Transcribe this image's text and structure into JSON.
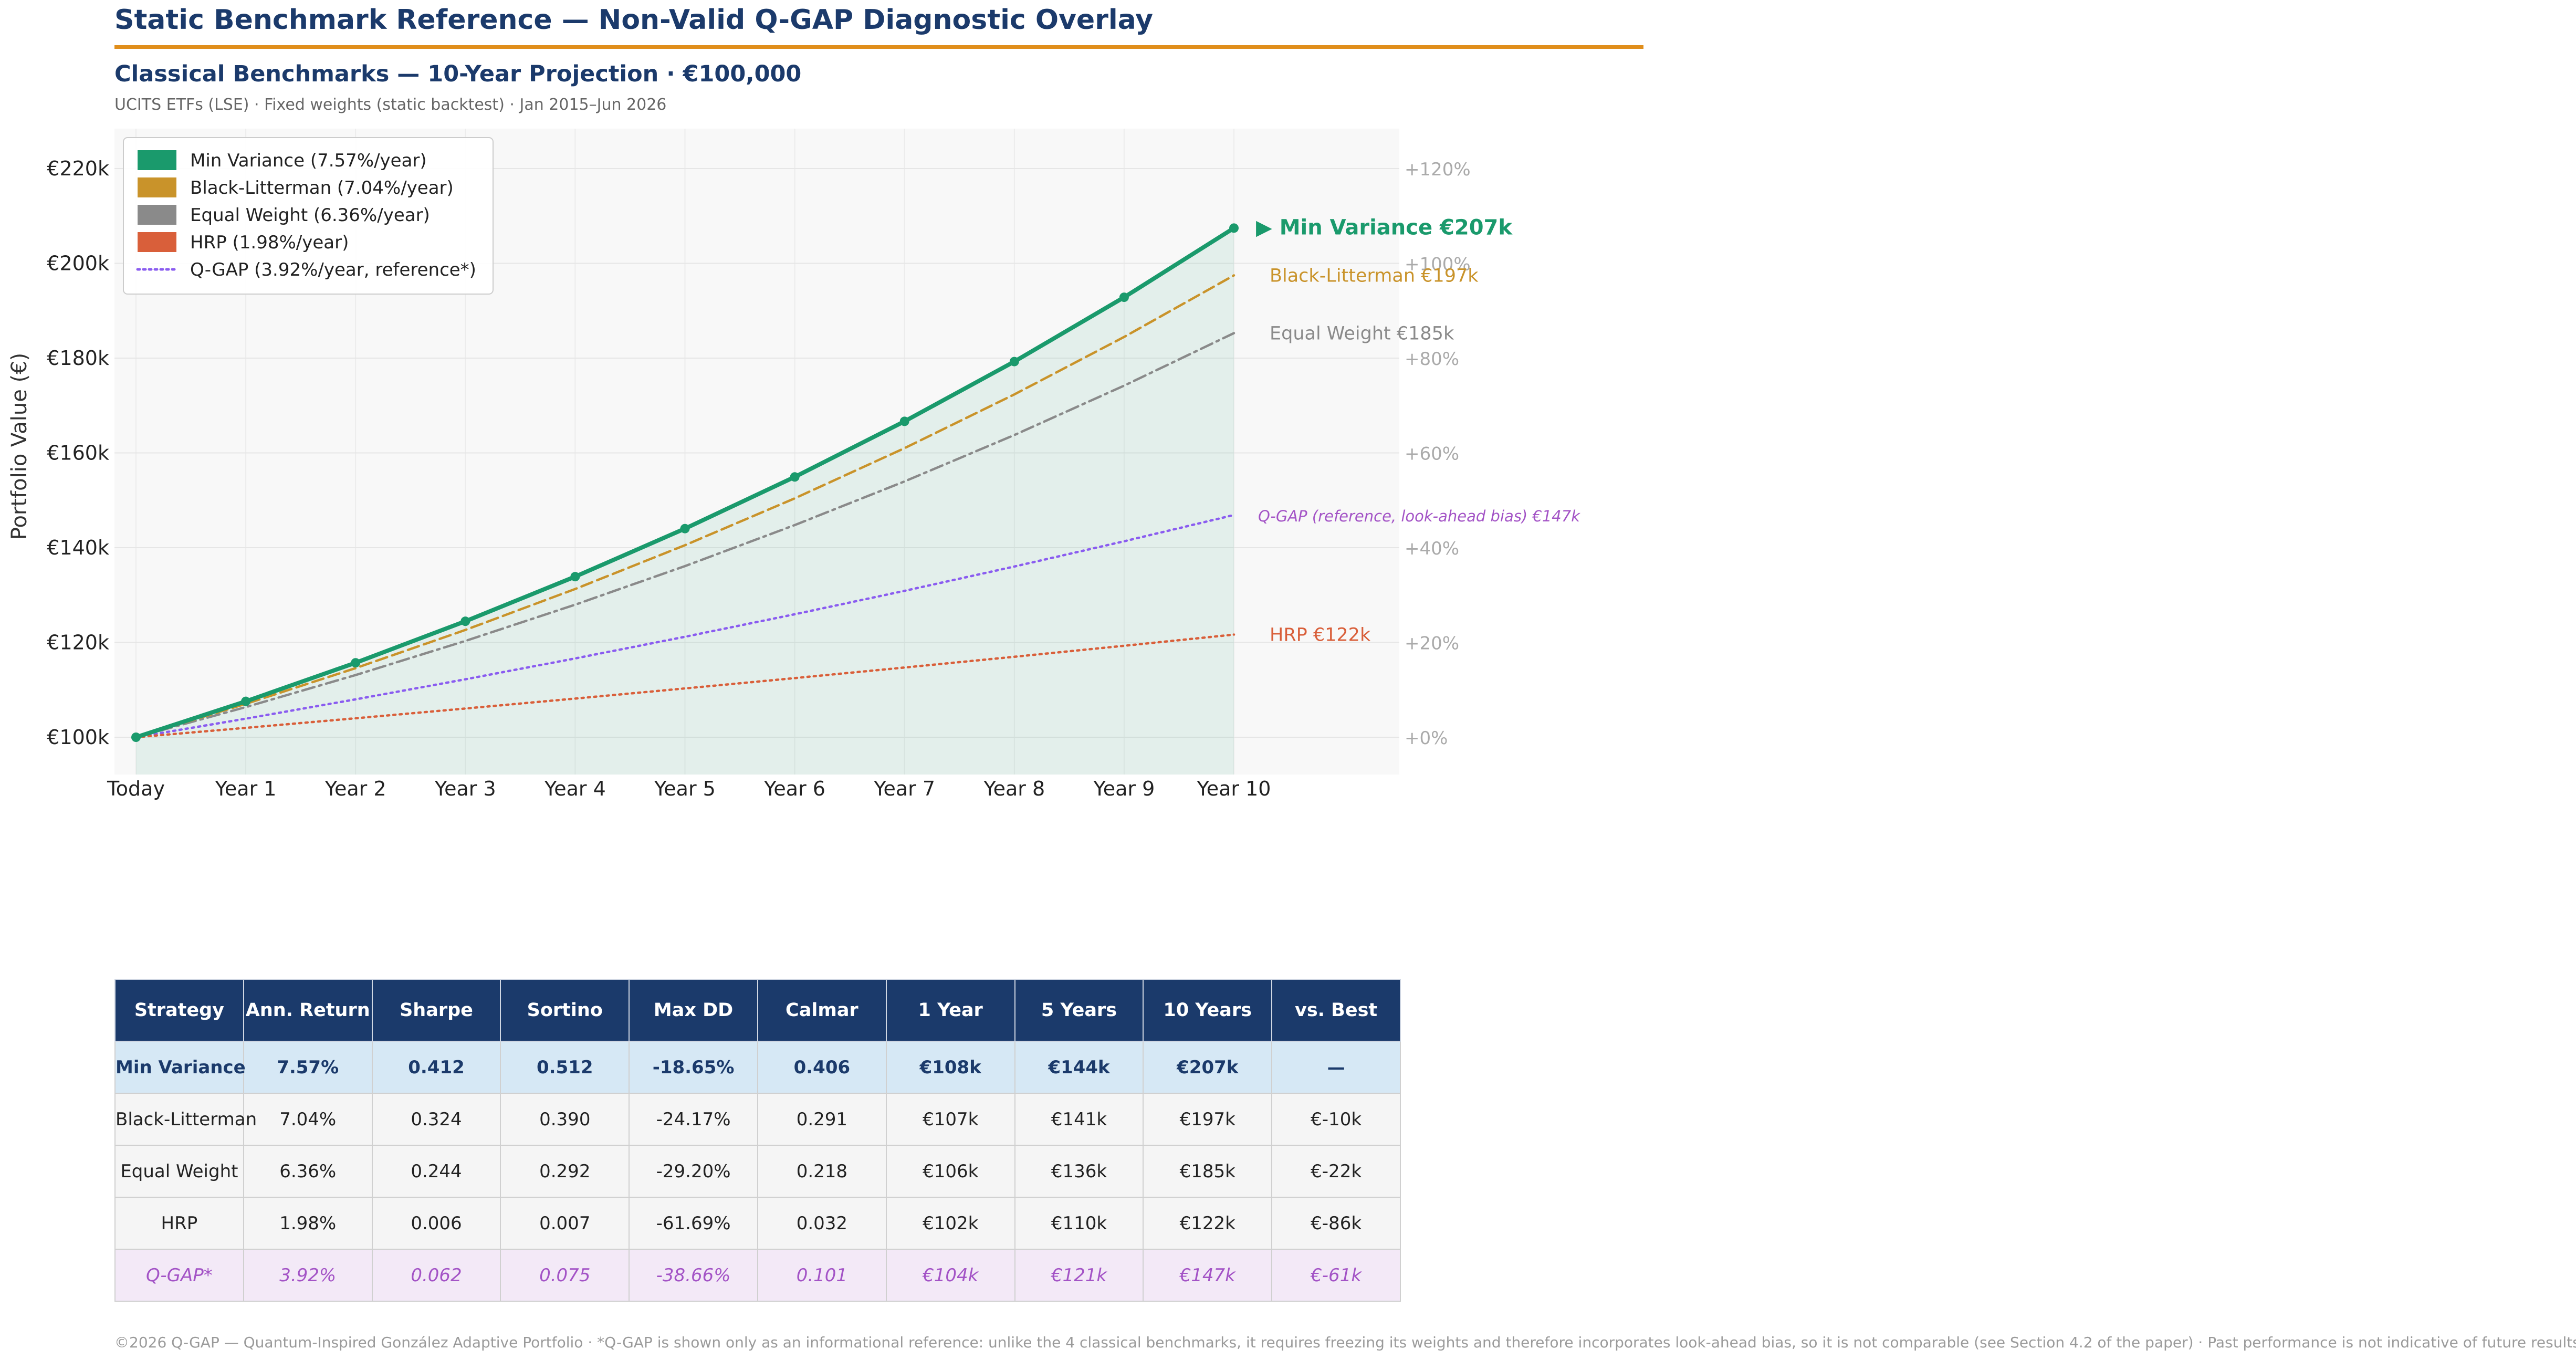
{
  "header": {
    "title": "Static Benchmark Reference — Non-Valid Q-GAP Diagnostic Overlay",
    "subtitle": "Classical Benchmarks — 10-Year Projection  ·  €100,000",
    "meta": "UCITS ETFs (LSE)  ·  Fixed weights (static backtest)  ·  Jan 2015–Jun 2026"
  },
  "colors": {
    "navy": "#1b3a6b",
    "accent_rule": "#e08e1b",
    "min_variance": "#1a9a6c",
    "black_litterman": "#c9932a",
    "equal_weight": "#8a8a8a",
    "hrp": "#d95f3a",
    "qgap": "#8a5cf0",
    "qgap_label": "#a353c6"
  },
  "chart_data": {
    "type": "line",
    "x": [
      "Today",
      "Year 1",
      "Year 2",
      "Year 3",
      "Year 4",
      "Year 5",
      "Year 6",
      "Year 7",
      "Year 8",
      "Year 9",
      "Year 10"
    ],
    "ylabel": "Portfolio Value (€)",
    "ylim": [
      92500,
      228000
    ],
    "y_ticks": [
      100000,
      120000,
      140000,
      160000,
      180000,
      200000,
      220000
    ],
    "y_tick_labels": [
      "€100k",
      "€120k",
      "€140k",
      "€160k",
      "€180k",
      "€200k",
      "€220k"
    ],
    "y2_ticks": [
      0,
      20,
      40,
      60,
      80,
      100,
      120
    ],
    "y2_tick_labels": [
      "+0%",
      "+20%",
      "+40%",
      "+60%",
      "+80%",
      "+100%",
      "+120%"
    ],
    "grid": true,
    "legend_position": "top-left",
    "series": [
      {
        "name": "Min Variance",
        "legend": "Min Variance  (7.57%/year)",
        "rate": 0.0757,
        "color": "#1a9a6c",
        "style": "solid",
        "end_label": "▶ Min Variance  €207k",
        "values": [
          100000,
          107570,
          115710,
          124470,
          133890,
          144020,
          154930,
          166660,
          179270,
          192840,
          207440
        ]
      },
      {
        "name": "Black-Litterman",
        "legend": "Black-Litterman  (7.04%/year)",
        "rate": 0.0704,
        "color": "#c9932a",
        "style": "dashed",
        "end_label": "Black-Litterman  €197k",
        "values": [
          100000,
          107040,
          114580,
          122640,
          131280,
          140520,
          150410,
          161000,
          172340,
          184470,
          197460
        ]
      },
      {
        "name": "Equal Weight",
        "legend": "Equal Weight  (6.36%/year)",
        "rate": 0.0636,
        "color": "#8a8a8a",
        "style": "dashdot",
        "end_label": "Equal Weight  €185k",
        "values": [
          100000,
          106360,
          113120,
          120320,
          127970,
          136110,
          144770,
          153980,
          163770,
          174190,
          185270
        ]
      },
      {
        "name": "HRP",
        "legend": "HRP  (1.98%/year)",
        "rate": 0.0198,
        "color": "#d95f3a",
        "style": "dotted",
        "end_label": "HRP  €122k",
        "values": [
          100000,
          101980,
          104000,
          106060,
          108160,
          110300,
          112480,
          114710,
          116980,
          119300,
          121660
        ]
      },
      {
        "name": "Q-GAP",
        "legend": "Q-GAP  (3.92%/year, reference*)",
        "rate": 0.0392,
        "color": "#8a5cf0",
        "style": "dotted",
        "end_label": "Q-GAP (reference, look-ahead bias)  €147k",
        "values": [
          100000,
          103920,
          107990,
          112230,
          116630,
          121200,
          125950,
          130890,
          136020,
          141350,
          146890
        ]
      }
    ]
  },
  "table": {
    "headers": [
      "Strategy",
      "Ann. Return",
      "Sharpe",
      "Sortino",
      "Max DD",
      "Calmar",
      "1 Year",
      "5 Years",
      "10 Years",
      "vs. Best"
    ],
    "rows": [
      [
        "Min Variance",
        "7.57%",
        "0.412",
        "0.512",
        "-18.65%",
        "0.406",
        "€108k",
        "€144k",
        "€207k",
        "—"
      ],
      [
        "Black-Litterman",
        "7.04%",
        "0.324",
        "0.390",
        "-24.17%",
        "0.291",
        "€107k",
        "€141k",
        "€197k",
        "€-10k"
      ],
      [
        "Equal Weight",
        "6.36%",
        "0.244",
        "0.292",
        "-29.20%",
        "0.218",
        "€106k",
        "€136k",
        "€185k",
        "€-22k"
      ],
      [
        "HRP",
        "1.98%",
        "0.006",
        "0.007",
        "-61.69%",
        "0.032",
        "€102k",
        "€110k",
        "€122k",
        "€-86k"
      ],
      [
        "Q-GAP*",
        "3.92%",
        "0.062",
        "0.075",
        "-38.66%",
        "0.101",
        "€104k",
        "€121k",
        "€147k",
        "€-61k"
      ]
    ]
  },
  "footer": "©2026 Q-GAP — Quantum-Inspired González Adaptive Portfolio  ·  *Q-GAP is shown only as an informational reference: unlike the 4 classical benchmarks, it requires freezing its weights and therefore incorporates look-ahead bias, so it is not comparable (see Section 4.2 of the paper)  ·  Past performance is not indicative of future results."
}
